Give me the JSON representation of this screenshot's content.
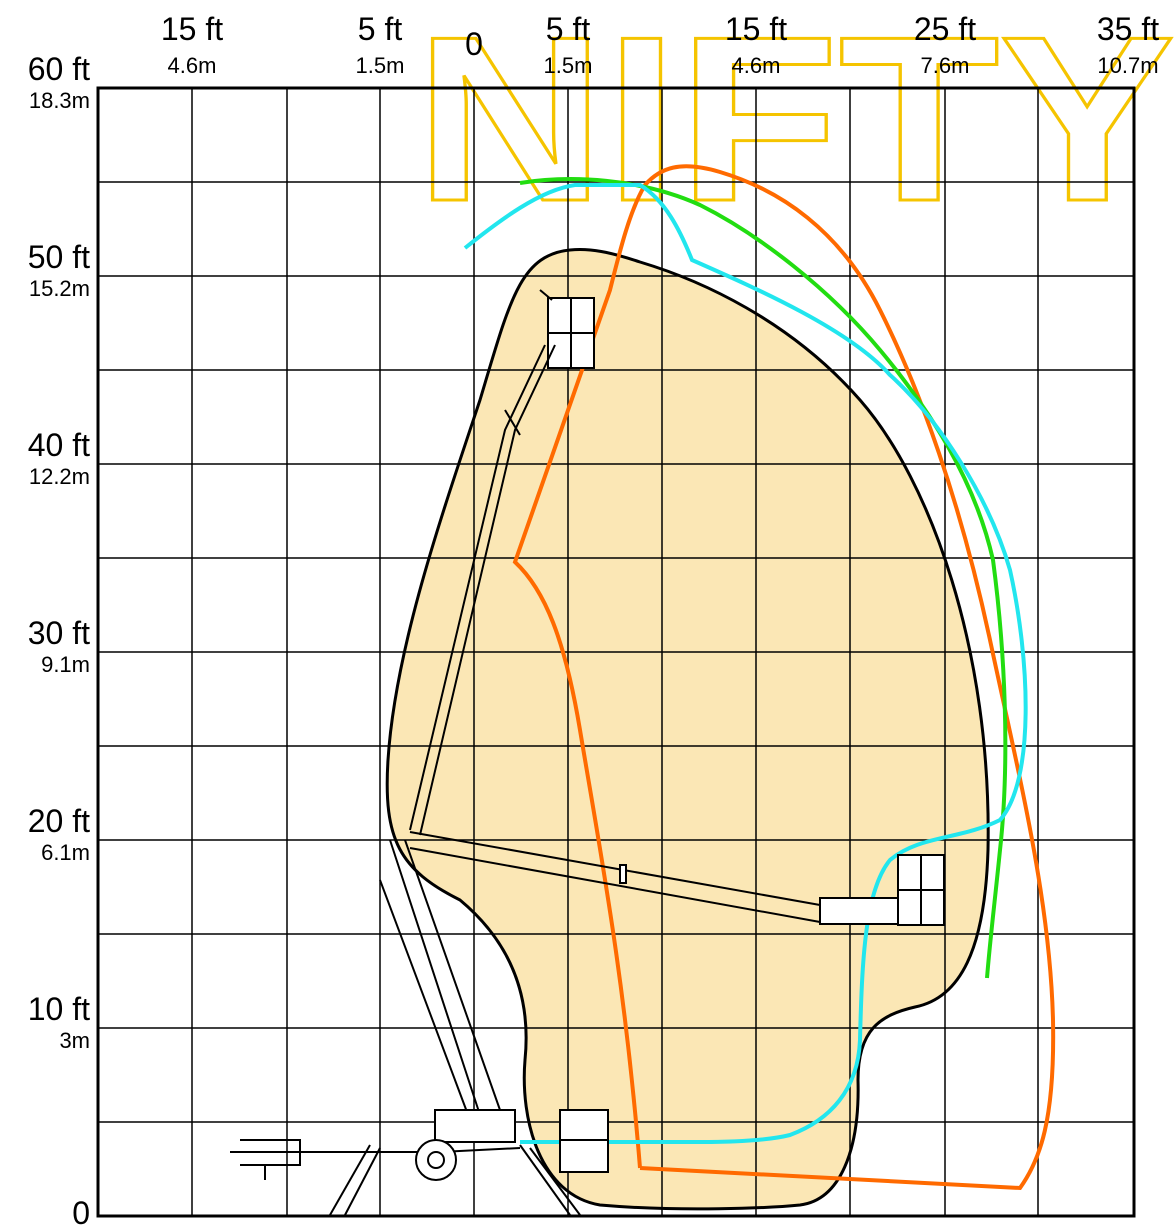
{
  "diagram": {
    "title": "",
    "watermark": "NIFTY",
    "x_labels": [
      {
        "ft": "15 ft",
        "m": "4.6m"
      },
      {
        "ft": "5 ft",
        "m": "1.5m"
      },
      {
        "ft": "0",
        "m": ""
      },
      {
        "ft": "5 ft",
        "m": "1.5m"
      },
      {
        "ft": "15 ft",
        "m": "4.6m"
      },
      {
        "ft": "25 ft",
        "m": "7.6m"
      },
      {
        "ft": "35 ft",
        "m": "10.7m"
      }
    ],
    "y_labels": [
      {
        "ft": "60 ft",
        "m": "18.3m"
      },
      {
        "ft": "50 ft",
        "m": "15.2m"
      },
      {
        "ft": "40 ft",
        "m": "12.2m"
      },
      {
        "ft": "30 ft",
        "m": "9.1m"
      },
      {
        "ft": "20 ft",
        "m": "6.1m"
      },
      {
        "ft": "10 ft",
        "m": "3m"
      },
      {
        "ft": "0",
        "m": ""
      }
    ],
    "colors": {
      "envelope_fill": "#fbe7b5",
      "envelope_stroke": "#000000",
      "orange": "#ff6a00",
      "green": "#22dd11",
      "cyan": "#22e6ee",
      "grid": "#000000",
      "watermark": "#f5c400"
    },
    "working_envelope": "shaded working range of the boom platform",
    "machine": "trailer-mounted articulated boom lift"
  }
}
